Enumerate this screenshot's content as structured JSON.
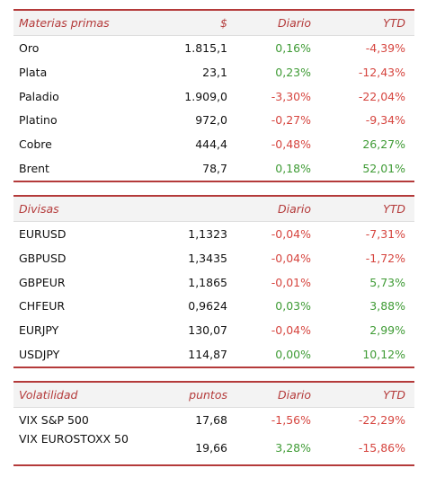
{
  "materias": {
    "headers": [
      "Materias primas",
      "$",
      "Diario",
      "YTD"
    ],
    "rows": [
      {
        "name": "Oro",
        "value": "1.815,1",
        "daily": "0,16%",
        "ytd": "-4,39%"
      },
      {
        "name": "Plata",
        "value": "23,1",
        "daily": "0,23%",
        "ytd": "-12,43%"
      },
      {
        "name": "Paladio",
        "value": "1.909,0",
        "daily": "-3,30%",
        "ytd": "-22,04%"
      },
      {
        "name": "Platino",
        "value": "972,0",
        "daily": "-0,27%",
        "ytd": "-9,34%"
      },
      {
        "name": "Cobre",
        "value": "444,4",
        "daily": "-0,48%",
        "ytd": "26,27%"
      },
      {
        "name": "Brent",
        "value": "78,7",
        "daily": "0,18%",
        "ytd": "52,01%"
      }
    ]
  },
  "divisas": {
    "headers": [
      "Divisas",
      "",
      "Diario",
      "YTD"
    ],
    "rows": [
      {
        "name": "EURUSD",
        "value": "1,1323",
        "daily": "-0,04%",
        "ytd": "-7,31%"
      },
      {
        "name": "GBPUSD",
        "value": "1,3435",
        "daily": "-0,04%",
        "ytd": "-1,72%"
      },
      {
        "name": "GBPEUR",
        "value": "1,1865",
        "daily": "-0,01%",
        "ytd": "5,73%"
      },
      {
        "name": "CHFEUR",
        "value": "0,9624",
        "daily": "0,03%",
        "ytd": "3,88%"
      },
      {
        "name": "EURJPY",
        "value": "130,07",
        "daily": "-0,04%",
        "ytd": "2,99%"
      },
      {
        "name": "USDJPY",
        "value": "114,87",
        "daily": "0,00%",
        "ytd": "10,12%"
      }
    ]
  },
  "volatilidad": {
    "headers": [
      "Volatilidad",
      "puntos",
      "Diario",
      "YTD"
    ],
    "rows": [
      {
        "name": "VIX S&P 500",
        "value": "17,68",
        "daily": "-1,56%",
        "ytd": "-22,29%"
      },
      {
        "name": "VIX EUROSTOXX 50",
        "value": "19,66",
        "daily": "3,28%",
        "ytd": "-15,86%"
      }
    ]
  },
  "colors": {
    "accent": "#b43a3a",
    "positive": "#3f9b35",
    "negative": "#d6453f"
  }
}
